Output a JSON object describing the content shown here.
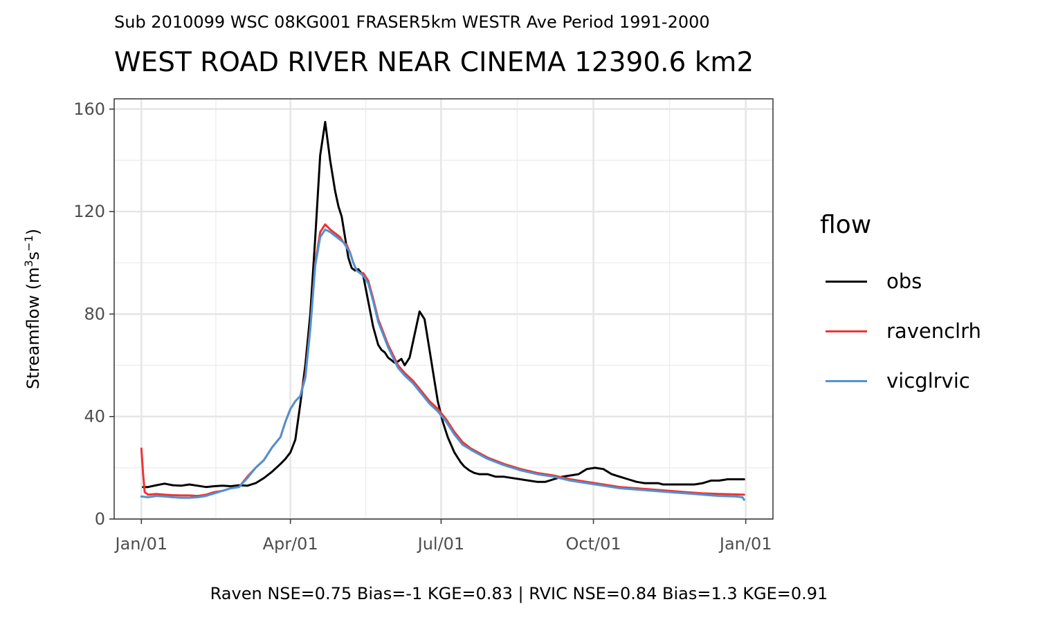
{
  "subtitle": "Sub 2010099 WSC 08KG001 FRASER5km WESTR Ave Period 1991-2000",
  "title": "WEST ROAD RIVER NEAR CINEMA 12390.6 km2",
  "caption": "Raven NSE=0.75 Bias=-1 KGE=0.83 | RVIC NSE=0.84 Bias=1.3 KGE=0.91",
  "legend": {
    "title": "flow",
    "items": [
      {
        "label": "obs",
        "color": "#000000"
      },
      {
        "label": "ravenclrh",
        "color": "#ee3333"
      },
      {
        "label": "vicglrvic",
        "color": "#4f93d2"
      }
    ]
  },
  "chart_data": {
    "type": "line",
    "title": "WEST ROAD RIVER NEAR CINEMA 12390.6 km2",
    "subtitle": "Sub 2010099 WSC 08KG001 FRASER5km WESTR Ave Period 1991-2000",
    "xlabel": "",
    "ylabel": "Streamflow (m³s⁻¹)",
    "ylabel_parts": {
      "pre": "Streamflow (m",
      "sup1": "3",
      "mid": "s",
      "sup2": "−1",
      "post": ")"
    },
    "x_ticks": [
      {
        "label": "Jan/01",
        "day": 1
      },
      {
        "label": "Apr/01",
        "day": 91
      },
      {
        "label": "Jul/01",
        "day": 182
      },
      {
        "label": "Oct/01",
        "day": 274
      },
      {
        "label": "Jan/01",
        "day": 366
      }
    ],
    "y_ticks": [
      0,
      40,
      80,
      120,
      160
    ],
    "xlim": [
      1,
      366
    ],
    "ylim": [
      0,
      160
    ],
    "grid": true,
    "legend_position": "right",
    "series": [
      {
        "name": "obs",
        "color": "#000000",
        "x": [
          2,
          5,
          10,
          15,
          20,
          25,
          30,
          35,
          40,
          45,
          50,
          55,
          60,
          65,
          70,
          75,
          80,
          85,
          88,
          91,
          94,
          97,
          100,
          103,
          106,
          109,
          112,
          115,
          118,
          120,
          122,
          124,
          126,
          128,
          130,
          132,
          135,
          138,
          141,
          144,
          146,
          148,
          150,
          152,
          154,
          156,
          158,
          160,
          163,
          166,
          169,
          172,
          175,
          178,
          180,
          183,
          186,
          188,
          190,
          192,
          194,
          196,
          199,
          202,
          205,
          210,
          215,
          220,
          225,
          230,
          235,
          240,
          245,
          250,
          255,
          260,
          265,
          270,
          275,
          280,
          285,
          290,
          295,
          300,
          305,
          310,
          313,
          316,
          320,
          325,
          330,
          335,
          340,
          345,
          350,
          355,
          360,
          364,
          365
        ],
        "y": [
          12.5,
          12.5,
          13.2,
          13.8,
          13.2,
          13.0,
          13.5,
          13.0,
          12.5,
          12.8,
          13.0,
          12.8,
          13.2,
          13.0,
          14.0,
          16.0,
          18.5,
          21.5,
          23.5,
          26.0,
          31.0,
          45.0,
          60.0,
          80.0,
          110.0,
          142.0,
          155.0,
          140.0,
          128.0,
          122.0,
          118.0,
          110.0,
          102.0,
          98.0,
          97.0,
          97.5,
          95.0,
          85.0,
          75.0,
          68.0,
          66.0,
          65.0,
          63.0,
          62.0,
          61.0,
          61.5,
          62.5,
          60.0,
          63.0,
          72.0,
          81.0,
          78.0,
          66.0,
          54.0,
          46.0,
          38.0,
          32.0,
          29.0,
          26.0,
          24.0,
          22.0,
          20.5,
          19.0,
          18.0,
          17.5,
          17.5,
          16.5,
          16.5,
          16.0,
          15.5,
          15.0,
          14.5,
          14.5,
          15.5,
          16.5,
          17.0,
          17.5,
          19.5,
          20.0,
          19.5,
          17.5,
          16.5,
          15.5,
          14.5,
          14.0,
          14.0,
          14.0,
          13.5,
          13.5,
          13.5,
          13.5,
          13.5,
          14.0,
          15.0,
          15.0,
          15.5,
          15.5,
          15.5,
          15.5
        ]
      },
      {
        "name": "ravenclrh",
        "color": "#ee3333",
        "x": [
          1,
          2,
          3,
          5,
          10,
          15,
          20,
          25,
          30,
          35,
          40,
          45,
          50,
          55,
          60,
          65,
          70,
          75,
          80,
          85,
          88,
          91,
          92,
          94,
          97,
          100,
          103,
          106,
          109,
          112,
          115,
          117,
          119,
          121,
          123,
          125,
          127,
          129,
          131,
          133,
          135,
          138,
          141,
          144,
          147,
          150,
          153,
          156,
          160,
          165,
          170,
          175,
          180,
          185,
          190,
          195,
          200,
          210,
          220,
          230,
          240,
          250,
          260,
          270,
          280,
          290,
          300,
          310,
          320,
          330,
          340,
          350,
          360,
          364,
          365
        ],
        "y": [
          27.5,
          18.0,
          10.5,
          9.5,
          9.8,
          9.5,
          9.3,
          9.2,
          9.2,
          9.0,
          9.5,
          10.5,
          11.0,
          12.0,
          12.5,
          16.5,
          20.0,
          23.0,
          28.0,
          32.0,
          38.0,
          43.0,
          44.0,
          46.0,
          48.0,
          56.0,
          75.0,
          100.0,
          112.0,
          115.0,
          113.0,
          112.0,
          111.0,
          110.0,
          108.0,
          107.0,
          104.0,
          100.0,
          97.0,
          96.0,
          96.0,
          93.0,
          86.0,
          78.0,
          73.0,
          68.0,
          64.0,
          60.0,
          57.0,
          54.0,
          50.0,
          46.0,
          43.0,
          39.0,
          34.0,
          30.0,
          27.5,
          24.0,
          21.5,
          19.5,
          18.0,
          17.0,
          15.5,
          14.5,
          13.5,
          12.5,
          12.0,
          11.5,
          11.0,
          10.5,
          10.0,
          9.8,
          9.6,
          9.5,
          9.5
        ]
      },
      {
        "name": "vicglrvic",
        "color": "#4f93d2",
        "x": [
          1,
          5,
          10,
          15,
          20,
          25,
          30,
          35,
          40,
          45,
          50,
          55,
          60,
          65,
          70,
          75,
          80,
          85,
          88,
          91,
          92,
          94,
          97,
          100,
          103,
          106,
          109,
          112,
          115,
          117,
          119,
          121,
          123,
          125,
          127,
          129,
          131,
          133,
          135,
          138,
          141,
          144,
          147,
          150,
          153,
          156,
          160,
          165,
          170,
          175,
          180,
          185,
          190,
          195,
          200,
          210,
          220,
          230,
          240,
          250,
          260,
          270,
          280,
          290,
          300,
          310,
          320,
          330,
          340,
          350,
          360,
          364,
          365
        ],
        "y": [
          8.8,
          8.5,
          9.0,
          8.8,
          8.5,
          8.3,
          8.3,
          8.5,
          9.0,
          10.0,
          11.0,
          12.0,
          12.5,
          16.0,
          20.0,
          23.0,
          28.0,
          32.0,
          38.0,
          43.0,
          44.0,
          46.0,
          48.0,
          55.0,
          74.0,
          99.0,
          110.0,
          113.0,
          112.0,
          111.0,
          110.0,
          109.0,
          108.0,
          106.0,
          104.0,
          100.0,
          97.0,
          96.0,
          95.0,
          92.0,
          85.0,
          77.0,
          72.0,
          67.0,
          63.0,
          59.0,
          56.0,
          53.0,
          49.0,
          45.0,
          42.0,
          38.0,
          33.0,
          29.0,
          27.0,
          23.5,
          21.0,
          19.0,
          17.5,
          16.5,
          15.0,
          14.0,
          13.0,
          12.0,
          11.5,
          11.0,
          10.5,
          10.0,
          9.5,
          9.0,
          8.8,
          8.5,
          7.5
        ]
      }
    ]
  }
}
